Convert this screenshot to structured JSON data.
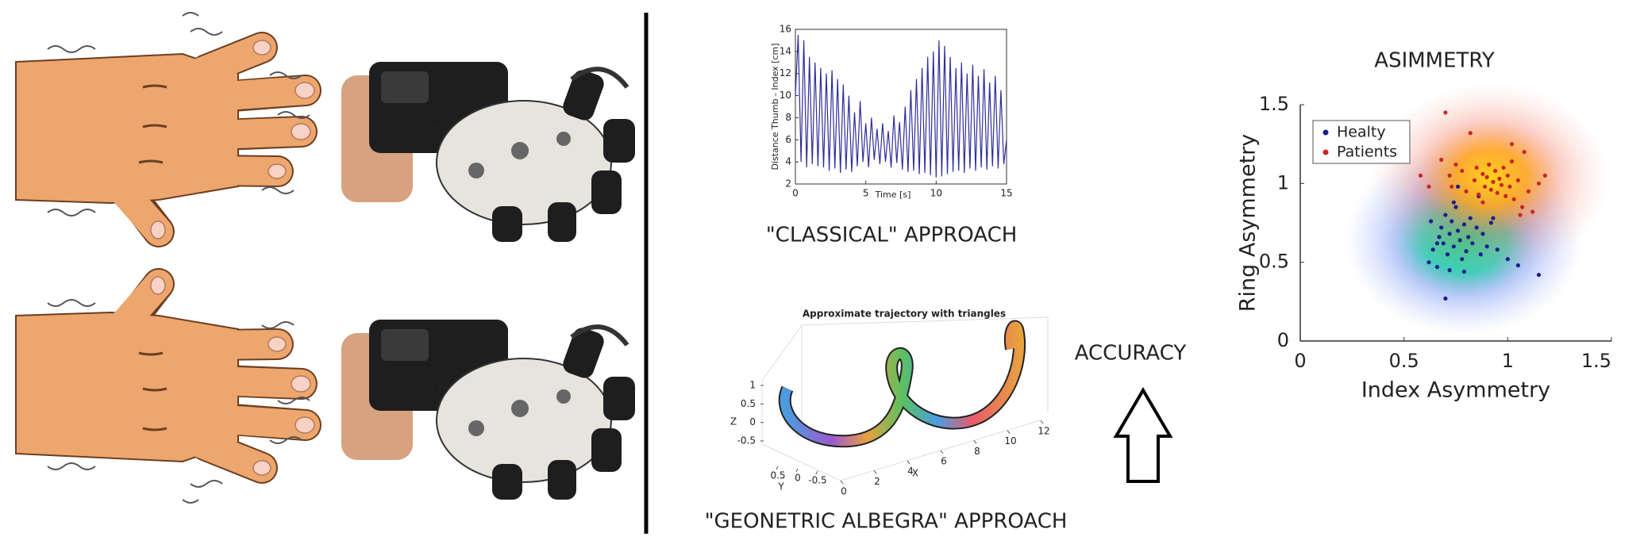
{
  "chart_data": [
    {
      "type": "line",
      "xlabel": "Time [s]",
      "ylabel": "Distance Thumb - Index [cm]",
      "x": [
        0,
        0.2,
        0.4,
        0.6,
        0.8,
        1.0,
        1.2,
        1.4,
        1.6,
        1.8,
        2.0,
        2.2,
        2.4,
        2.6,
        2.8,
        3.0,
        3.2,
        3.4,
        3.6,
        3.8,
        4.0,
        4.2,
        4.4,
        4.6,
        4.8,
        5.0,
        5.2,
        5.4,
        5.6,
        5.8,
        6.0,
        6.2,
        6.4,
        6.6,
        6.8,
        7.0,
        7.2,
        7.4,
        7.6,
        7.8,
        8.0,
        8.2,
        8.4,
        8.6,
        8.8,
        9.0,
        9.2,
        9.4,
        9.6,
        9.8,
        10.0,
        10.2,
        10.4,
        10.6,
        10.8,
        11.0,
        11.2,
        11.4,
        11.6,
        11.8,
        12.0,
        12.2,
        12.4,
        12.6,
        12.8,
        13.0,
        13.2,
        13.4,
        13.6,
        13.8,
        14.0,
        14.2,
        14.4,
        14.6,
        14.8,
        15.0
      ],
      "values": [
        10,
        15.5,
        4,
        15,
        3.5,
        13.5,
        3.8,
        13,
        3.6,
        12.5,
        3.5,
        12,
        3.2,
        12.3,
        3.4,
        11.5,
        3.0,
        11,
        3.3,
        10,
        3.1,
        8.5,
        3.6,
        9.5,
        4,
        7.5,
        3.5,
        8,
        4.2,
        7,
        3.8,
        7.5,
        4,
        6.8,
        3.5,
        8.2,
        3.9,
        7.6,
        3.3,
        9,
        3.1,
        10.5,
        3.2,
        11.5,
        2.9,
        12.5,
        3,
        13.5,
        2.8,
        14,
        2.6,
        15,
        2.7,
        14.5,
        2.9,
        13.5,
        3.1,
        12.5,
        3.2,
        13,
        3,
        12,
        3.4,
        12.8,
        3.2,
        11.8,
        3.5,
        12.4,
        3.3,
        11.2,
        3.6,
        11.8,
        3.4,
        10.5,
        3.8,
        6
      ],
      "color": "#2e2e9a",
      "xlim": [
        0,
        15
      ],
      "xticks": [
        0,
        5,
        10,
        15
      ],
      "ylim": [
        2,
        16
      ],
      "yticks": [
        2,
        4,
        6,
        8,
        10,
        12,
        14,
        16
      ]
    },
    {
      "type": "scatter",
      "title": "ASIMMETRY",
      "xlabel": "Index Asymmetry",
      "ylabel": "Ring Asymmetry",
      "xlim": [
        0,
        1.5
      ],
      "xticks": [
        0,
        0.5,
        1,
        1.5
      ],
      "ylim": [
        0,
        1.5
      ],
      "yticks": [
        0,
        0.5,
        1,
        1.5
      ],
      "legend": "upper left",
      "series": [
        {
          "name": "Healty",
          "color": "#1a1f8c",
          "x": [
            0.62,
            0.64,
            0.66,
            0.68,
            0.69,
            0.7,
            0.71,
            0.72,
            0.73,
            0.74,
            0.75,
            0.76,
            0.77,
            0.78,
            0.79,
            0.8,
            0.81,
            0.82,
            0.83,
            0.85,
            0.87,
            0.88,
            0.9,
            0.92,
            0.95,
            1.0,
            1.05,
            1.15,
            0.7,
            0.67,
            0.63,
            0.76,
            0.74,
            0.86,
            0.93,
            0.66,
            0.79,
            0.72
          ],
          "values": [
            0.5,
            0.58,
            0.47,
            0.72,
            0.62,
            0.8,
            0.55,
            0.68,
            0.76,
            0.6,
            0.85,
            0.7,
            0.64,
            0.52,
            0.74,
            0.57,
            0.66,
            0.78,
            0.62,
            0.72,
            0.55,
            0.68,
            0.6,
            0.75,
            0.58,
            0.52,
            0.48,
            0.42,
            0.27,
            0.66,
            0.76,
            0.98,
            0.88,
            0.92,
            0.78,
            0.62,
            0.44,
            0.45
          ]
        },
        {
          "name": "Patients",
          "color": "#c62828",
          "x": [
            0.58,
            0.62,
            0.68,
            0.7,
            0.72,
            0.75,
            0.78,
            0.8,
            0.82,
            0.84,
            0.85,
            0.86,
            0.88,
            0.89,
            0.9,
            0.91,
            0.92,
            0.93,
            0.94,
            0.95,
            0.96,
            0.97,
            0.98,
            0.99,
            1.0,
            1.01,
            1.02,
            1.03,
            1.05,
            1.07,
            1.08,
            1.1,
            1.12,
            1.15,
            1.18,
            1.02,
            0.88,
            1.06,
            0.73
          ],
          "values": [
            1.05,
            0.98,
            1.15,
            1.45,
            1.05,
            1.12,
            1.08,
            0.95,
            1.32,
            1.02,
            1.1,
            0.93,
            1.06,
            0.98,
            1.04,
            1.12,
            0.96,
            1.01,
            1.08,
            0.94,
            1.03,
            0.99,
            1.1,
            0.92,
            1.05,
            0.98,
            1.14,
            0.9,
            1.02,
            0.85,
            1.2,
            0.95,
            0.82,
            1.0,
            1.05,
            1.25,
            0.88,
            0.8,
            0.98
          ]
        }
      ]
    },
    {
      "type": "line3d",
      "title": "Approximate trajectory with triangles",
      "xlabel": "X",
      "ylabel": "Y",
      "zlabel": "Z",
      "xlim": [
        0,
        12
      ],
      "xticks": [
        0,
        2,
        4,
        6,
        8,
        10,
        12
      ],
      "ylim": [
        -0.5,
        0.5
      ],
      "yticks": [
        0.5,
        0,
        -0.5
      ],
      "zlim": [
        -0.5,
        1
      ],
      "zticks": [
        1,
        0.5,
        0,
        -0.5
      ]
    }
  ],
  "labels": {
    "classical": "\"CLASSICAL\" APPROACH",
    "geometric": "\"GEONETRIC ALBEGRA\" APPROACH",
    "accuracy": "ACCURACY"
  }
}
